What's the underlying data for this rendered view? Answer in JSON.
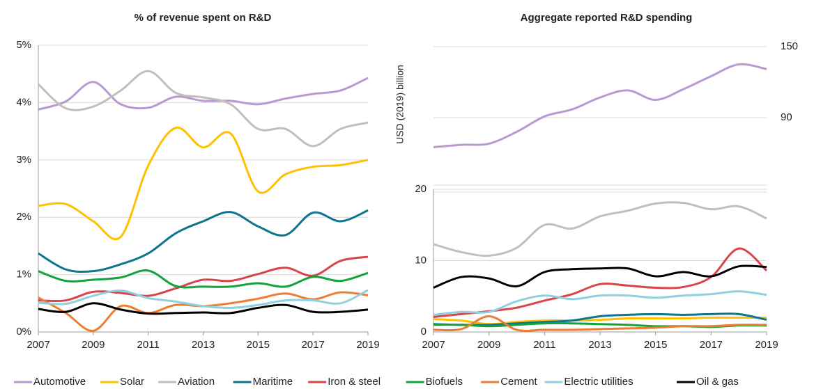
{
  "chart_data": [
    {
      "type": "line",
      "title": "% of revenue spent on R&D",
      "x": [
        2007,
        2008,
        2009,
        2010,
        2011,
        2012,
        2013,
        2014,
        2015,
        2016,
        2017,
        2018,
        2019
      ],
      "xlim": [
        2007,
        2019
      ],
      "xticks": [
        2007,
        2009,
        2011,
        2013,
        2015,
        2017,
        2019
      ],
      "ylim": [
        0,
        5
      ],
      "yticks": [
        {
          "value": 0,
          "label": "0%"
        },
        {
          "value": 1,
          "label": "1%"
        },
        {
          "value": 2,
          "label": "2%"
        },
        {
          "value": 3,
          "label": "3%"
        },
        {
          "value": 4,
          "label": "4%"
        },
        {
          "value": 5,
          "label": "5%"
        }
      ],
      "grid": true,
      "series": [
        {
          "name": "Automotive",
          "color": "#b89ad1",
          "values": [
            3.88,
            4.02,
            4.36,
            3.97,
            3.91,
            4.1,
            4.03,
            4.03,
            3.97,
            4.07,
            4.15,
            4.21,
            4.43
          ]
        },
        {
          "name": "Solar",
          "color": "#ffc000",
          "values": [
            2.2,
            2.23,
            1.93,
            1.66,
            2.9,
            3.56,
            3.22,
            3.46,
            2.45,
            2.75,
            2.88,
            2.91,
            3.0
          ]
        },
        {
          "name": "Aviation",
          "color": "#bfbfbf",
          "values": [
            4.32,
            3.9,
            3.93,
            4.21,
            4.55,
            4.17,
            4.09,
            3.97,
            3.54,
            3.54,
            3.24,
            3.54,
            3.65
          ]
        },
        {
          "name": "Maritime",
          "color": "#0e7490",
          "values": [
            1.37,
            1.09,
            1.06,
            1.18,
            1.37,
            1.72,
            1.93,
            2.09,
            1.84,
            1.69,
            2.08,
            1.93,
            2.12
          ]
        },
        {
          "name": "Iron & steel",
          "color": "#d9434a",
          "values": [
            0.55,
            0.55,
            0.7,
            0.68,
            0.63,
            0.76,
            0.91,
            0.89,
            1.01,
            1.12,
            0.98,
            1.24,
            1.31
          ]
        },
        {
          "name": "Biofuels",
          "color": "#12a33b",
          "values": [
            1.06,
            0.89,
            0.91,
            0.95,
            1.07,
            0.8,
            0.79,
            0.79,
            0.85,
            0.79,
            0.96,
            0.89,
            1.03
          ]
        },
        {
          "name": "Cement",
          "color": "#ed7d31",
          "values": [
            0.6,
            0.33,
            0.02,
            0.45,
            0.33,
            0.47,
            0.45,
            0.5,
            0.58,
            0.67,
            0.57,
            0.69,
            0.64
          ]
        },
        {
          "name": "Electric utilities",
          "color": "#8fd0e0",
          "values": [
            0.51,
            0.49,
            0.63,
            0.72,
            0.59,
            0.53,
            0.45,
            0.42,
            0.47,
            0.55,
            0.55,
            0.5,
            0.73
          ]
        },
        {
          "name": "Oil & gas",
          "color": "#000000",
          "values": [
            0.4,
            0.35,
            0.5,
            0.39,
            0.32,
            0.33,
            0.34,
            0.33,
            0.42,
            0.47,
            0.35,
            0.35,
            0.39
          ]
        }
      ]
    },
    {
      "type": "line",
      "title": "Aggregate reported R&D spending",
      "y_label": "USD (2019) billion",
      "x": [
        2007,
        2008,
        2009,
        2010,
        2011,
        2012,
        2013,
        2014,
        2015,
        2016,
        2017,
        2018,
        2019
      ],
      "xlim": [
        2007,
        2019
      ],
      "xticks": [
        2007,
        2009,
        2011,
        2013,
        2015,
        2017,
        2019
      ],
      "ylim": [
        0,
        20
      ],
      "yticks": [
        0,
        10,
        20
      ],
      "y2lim": [
        45,
        165
      ],
      "y2ticks": [
        90,
        150
      ],
      "grid": true,
      "series": [
        {
          "color": "#b89ad1",
          "axis": "y2",
          "values": [
            65,
            67,
            68,
            78,
            91,
            97,
            107,
            113,
            105,
            114,
            125,
            135,
            131
          ]
        },
        {
          "color": "#ffc000",
          "values": [
            1.8,
            1.6,
            1.1,
            1.4,
            1.6,
            1.6,
            1.7,
            1.9,
            1.9,
            1.9,
            2.0,
            2.0,
            2.0
          ]
        },
        {
          "color": "#bfbfbf",
          "values": [
            12.3,
            11.2,
            10.7,
            11.8,
            15,
            14.5,
            16.2,
            17,
            18,
            18.1,
            17.2,
            17.6,
            15.9
          ]
        },
        {
          "color": "#0e7490",
          "values": [
            1.1,
            1,
            1,
            1.2,
            1.4,
            1.6,
            2.2,
            2.4,
            2.5,
            2.4,
            2.5,
            2.5,
            1.7
          ]
        },
        {
          "color": "#d9434a",
          "values": [
            2.1,
            2.5,
            2.9,
            3.4,
            4.4,
            5.3,
            6.7,
            6.5,
            6.2,
            6.3,
            7.7,
            11.7,
            8.6
          ]
        },
        {
          "color": "#12a33b",
          "values": [
            1.0,
            1.0,
            0.8,
            1.0,
            1.2,
            1.2,
            1.1,
            1.0,
            0.8,
            0.8,
            0.7,
            0.9,
            0.9
          ]
        },
        {
          "color": "#ed7d31",
          "values": [
            0.3,
            0.4,
            2.2,
            0.3,
            0.3,
            0.3,
            0.4,
            0.5,
            0.6,
            0.8,
            0.8,
            1.0,
            1.0
          ]
        },
        {
          "color": "#8fd0e0",
          "values": [
            2.4,
            2.8,
            2.8,
            4.3,
            5.1,
            4.6,
            5.1,
            5.1,
            4.8,
            5.1,
            5.3,
            5.7,
            5.2
          ]
        },
        {
          "color": "#000000",
          "values": [
            6.2,
            7.7,
            7.5,
            6.4,
            8.4,
            8.8,
            8.9,
            8.9,
            7.8,
            8.4,
            7.8,
            9.2,
            9.1
          ]
        }
      ]
    }
  ]
}
